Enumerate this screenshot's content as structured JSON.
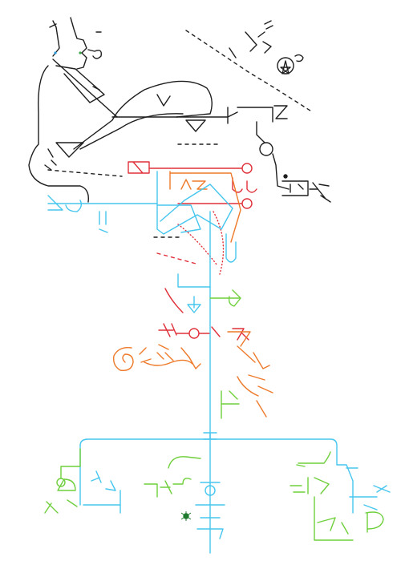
{
  "canvas": {
    "background": "#ffffff",
    "description_free": true
  },
  "colors": {
    "black": "#1e1e1e",
    "red": "#e0303a",
    "orange": "#ee7a2a",
    "cyan": "#46c6ee",
    "green": "#6fcf3c",
    "light_green": "#8fd94b",
    "dark_green": "#1f7a2e"
  },
  "regions": [
    {
      "name": "black-region",
      "color_key": "black"
    },
    {
      "name": "red-region",
      "color_key": "red"
    },
    {
      "name": "orange-region",
      "color_key": "orange"
    },
    {
      "name": "cyan-region",
      "color_key": "cyan"
    },
    {
      "name": "green-region",
      "color_key": "green"
    }
  ]
}
